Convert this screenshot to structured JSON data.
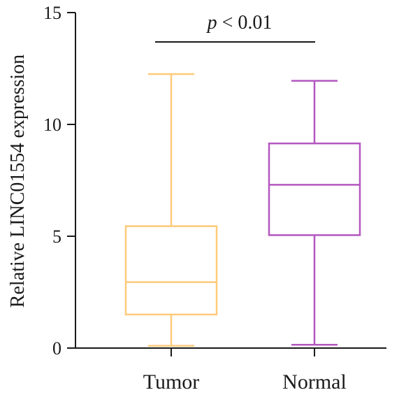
{
  "chart_data": {
    "type": "box",
    "ylabel": "Relative LINC01554 expression",
    "ylim": [
      0,
      15
    ],
    "yticks": [
      0,
      5,
      10,
      15
    ],
    "categories": [
      "Tumor",
      "Normal"
    ],
    "series": [
      {
        "category": "Tumor",
        "color": "#FFCA7A",
        "min": 0.1,
        "q1": 1.5,
        "median": 2.95,
        "q3": 5.45,
        "max": 12.25
      },
      {
        "category": "Normal",
        "color": "#B457C0",
        "min": 0.15,
        "q1": 5.05,
        "median": 7.3,
        "q3": 9.15,
        "max": 11.95
      }
    ],
    "annotation": {
      "p_symbol": "p",
      "rest": " < 0.01"
    },
    "grid": false,
    "legend": "none"
  }
}
